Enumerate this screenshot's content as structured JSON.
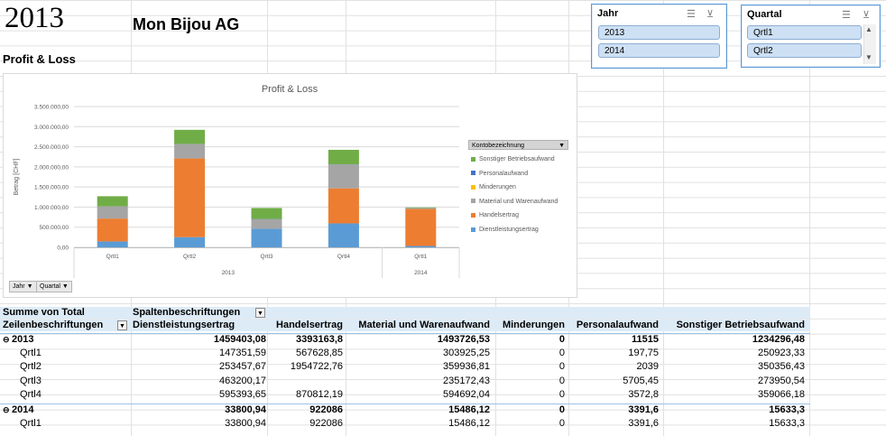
{
  "sheet": {
    "year_title": "2013",
    "company": "Mon Bijou AG",
    "section_title": "Profit & Loss"
  },
  "slicers": {
    "jahr": {
      "title": "Jahr",
      "items": [
        "2013",
        "2014"
      ],
      "icons": [
        "multi-select-icon",
        "clear-filter-icon"
      ]
    },
    "quartal": {
      "title": "Quartal",
      "items": [
        "Qrtl1",
        "Qrtl2"
      ],
      "icons": [
        "multi-select-icon",
        "clear-filter-icon",
        "scroll-up-icon",
        "scroll-down-icon"
      ]
    }
  },
  "chart_controls": {
    "jahr_button": "Jahr",
    "quartal_button": "Quartal",
    "legend_field": "Kontobezeichnung"
  },
  "chart_data": {
    "type": "bar",
    "stacked": true,
    "title": "Profit & Loss",
    "ylabel": "Betrag [CHF]",
    "xlabel": "",
    "ylim": [
      0,
      3500000
    ],
    "yticks": [
      0,
      500000,
      1000000,
      1500000,
      2000000,
      2500000,
      3000000,
      3500000
    ],
    "ytick_labels": [
      "0,00",
      "500.000,00",
      "1.000.000,00",
      "1.500.000,00",
      "2.000.000,00",
      "2.500.000,00",
      "3.000.000,00",
      "3.500.000,00"
    ],
    "categories": [
      "Qrtl1",
      "Qrtl2",
      "Qrtl3",
      "Qrtl4",
      "Qrtl1"
    ],
    "groups": [
      {
        "label": "2013",
        "count": 4
      },
      {
        "label": "2014",
        "count": 1
      }
    ],
    "legend_position": "right",
    "grid": true,
    "series": [
      {
        "name": "Dienstleistungsertrag",
        "color": "#5b9bd5",
        "values": [
          147351.59,
          253457.67,
          463200.17,
          595393.65,
          33800.94
        ]
      },
      {
        "name": "Handelsertrag",
        "color": "#ed7d31",
        "values": [
          567628.85,
          1954722.76,
          0,
          870812.19,
          922086
        ]
      },
      {
        "name": "Material und Warenaufwand",
        "color": "#a5a5a5",
        "values": [
          303925.25,
          359936.81,
          235172.43,
          594692.04,
          15486.12
        ]
      },
      {
        "name": "Minderungen",
        "color": "#ffc000",
        "values": [
          0,
          0,
          0,
          0,
          0
        ]
      },
      {
        "name": "Personalaufwand",
        "color": "#4472c4",
        "values": [
          197.75,
          2039,
          5705.45,
          3572.8,
          3391.6
        ]
      },
      {
        "name": "Sonstiger Betriebsaufwand",
        "color": "#70ad47",
        "values": [
          250923.33,
          350356.43,
          273950.54,
          359066.18,
          15633.3
        ]
      }
    ]
  },
  "pivot": {
    "corner_label": "Summe von Total",
    "column_field": "Spaltenbeschriftungen",
    "row_field": "Zeilenbeschriftungen",
    "columns": [
      "Dienstleistungsertrag",
      "Handelsertrag",
      "Material und Warenaufwand",
      "Minderungen",
      "Personalaufwand",
      "Sonstiger Betriebsaufwand"
    ],
    "rows": [
      {
        "label": "2013",
        "level": 0,
        "values": [
          "1459403,08",
          "3393163,8",
          "1493726,53",
          "0",
          "11515",
          "1234296,48"
        ]
      },
      {
        "label": "Qrtl1",
        "level": 1,
        "values": [
          "147351,59",
          "567628,85",
          "303925,25",
          "0",
          "197,75",
          "250923,33"
        ]
      },
      {
        "label": "Qrtl2",
        "level": 1,
        "values": [
          "253457,67",
          "1954722,76",
          "359936,81",
          "0",
          "2039",
          "350356,43"
        ]
      },
      {
        "label": "Qrtl3",
        "level": 1,
        "values": [
          "463200,17",
          "",
          "235172,43",
          "0",
          "5705,45",
          "273950,54"
        ]
      },
      {
        "label": "Qrtl4",
        "level": 1,
        "values": [
          "595393,65",
          "870812,19",
          "594692,04",
          "0",
          "3572,8",
          "359066,18"
        ]
      },
      {
        "label": "2014",
        "level": 0,
        "values": [
          "33800,94",
          "922086",
          "15486,12",
          "0",
          "3391,6",
          "15633,3"
        ]
      },
      {
        "label": "Qrtl1",
        "level": 1,
        "values": [
          "33800,94",
          "922086",
          "15486,12",
          "0",
          "3391,6",
          "15633,3"
        ]
      }
    ]
  }
}
